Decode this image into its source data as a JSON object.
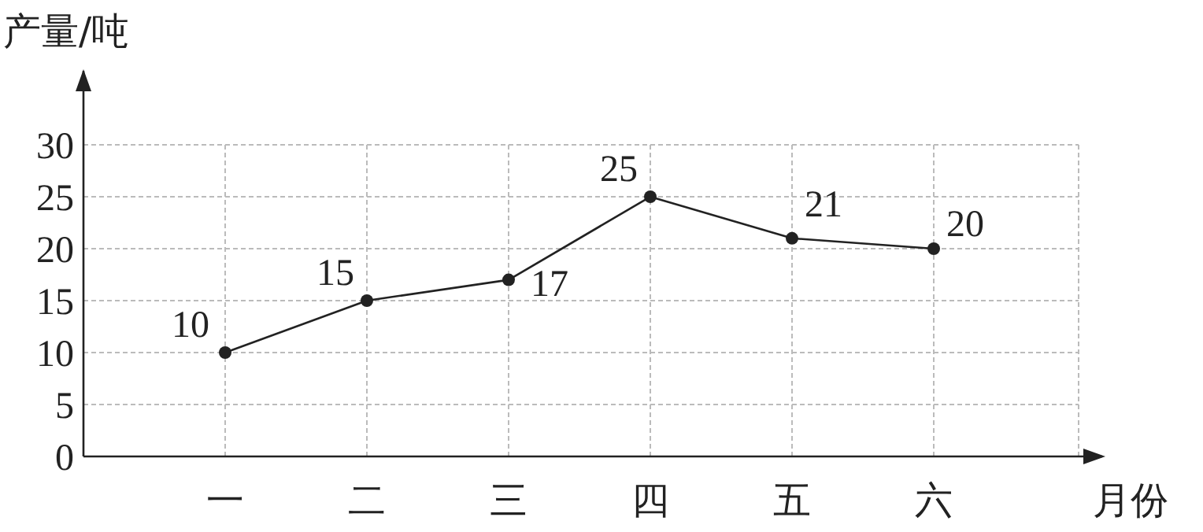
{
  "chart_data": {
    "type": "line",
    "xlabel": "月份",
    "ylabel": "产量/吨",
    "categories": [
      "一",
      "二",
      "三",
      "四",
      "五",
      "六"
    ],
    "series": [
      {
        "color": "#222222",
        "values": [
          10,
          15,
          17,
          25,
          21,
          20
        ]
      }
    ],
    "ylim": [
      0,
      30
    ],
    "yticks": [
      0,
      5,
      10,
      15,
      20,
      25,
      30
    ],
    "grid": true,
    "marker": "circle",
    "line_style": "solid",
    "data_labels": true
  }
}
